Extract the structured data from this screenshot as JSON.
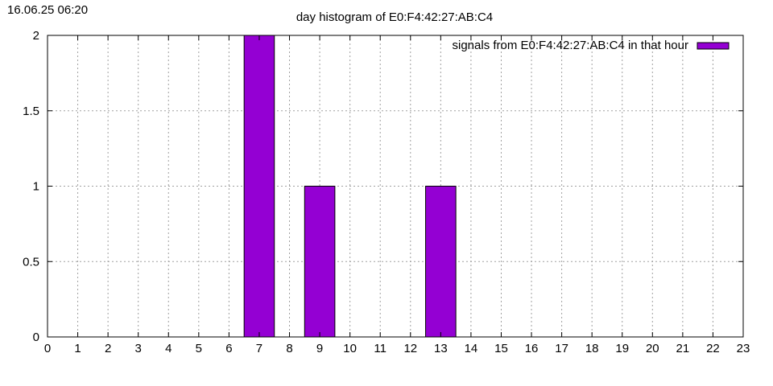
{
  "timestamp": "16.06.25 06:20",
  "chart_data": {
    "type": "bar",
    "title": "day histogram of E0:F4:42:27:AB:C4",
    "xlabel": "",
    "ylabel": "",
    "x": [
      0,
      1,
      2,
      3,
      4,
      5,
      6,
      7,
      8,
      9,
      10,
      11,
      12,
      13,
      14,
      15,
      16,
      17,
      18,
      19,
      20,
      21,
      22,
      23
    ],
    "series": [
      {
        "name": "signals from E0:F4:42:27:AB:C4 in that hour",
        "color": "#9400d3",
        "values": [
          0,
          0,
          0,
          0,
          0,
          0,
          0,
          2,
          0,
          1,
          0,
          0,
          0,
          1,
          0,
          0,
          0,
          0,
          0,
          0,
          0,
          0,
          0,
          0
        ]
      }
    ],
    "xlim": [
      0,
      23
    ],
    "ylim": [
      0,
      2
    ],
    "yticks": [
      "0",
      "0.5",
      "1",
      "1.5",
      "2"
    ],
    "xticks": [
      "0",
      "1",
      "2",
      "3",
      "4",
      "5",
      "6",
      "7",
      "8",
      "9",
      "10",
      "11",
      "12",
      "13",
      "14",
      "15",
      "16",
      "17",
      "18",
      "19",
      "20",
      "21",
      "22",
      "23"
    ],
    "grid": true,
    "legend_position": "top-right"
  }
}
